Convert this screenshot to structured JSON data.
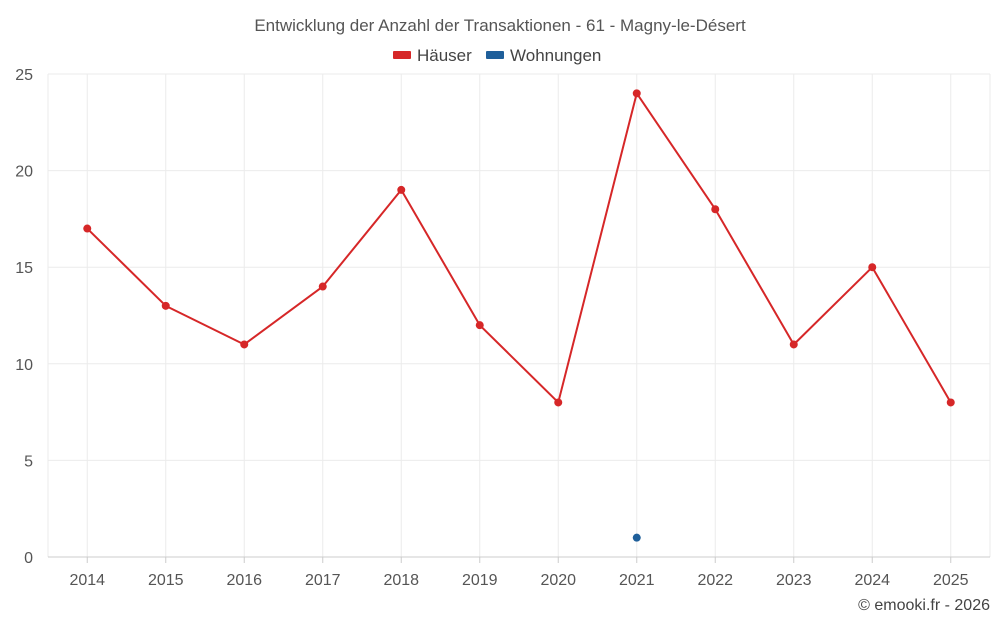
{
  "chart_data": {
    "type": "line",
    "title": "Entwicklung der Anzahl der Transaktionen - 61 - Magny-le-Désert",
    "categories": [
      "2014",
      "2015",
      "2016",
      "2017",
      "2018",
      "2019",
      "2020",
      "2021",
      "2022",
      "2023",
      "2024",
      "2025"
    ],
    "series": [
      {
        "name": "Häuser",
        "color": "#d62728",
        "values": [
          17,
          13,
          11,
          14,
          19,
          12,
          8,
          24,
          18,
          11,
          15,
          8
        ]
      },
      {
        "name": "Wohnungen",
        "color": "#1f5f9a",
        "values": [
          null,
          null,
          null,
          null,
          null,
          null,
          null,
          1,
          null,
          null,
          null,
          null
        ]
      }
    ],
    "ylim": [
      0,
      25
    ],
    "yticks": [
      0,
      5,
      10,
      15,
      20,
      25
    ],
    "grid": true,
    "legend_position": "top-center",
    "xlabel": "",
    "ylabel": ""
  },
  "credit": "© emooki.fr - 2026"
}
